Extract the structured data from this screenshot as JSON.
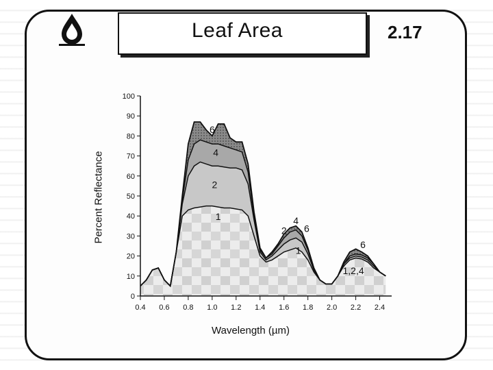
{
  "header": {
    "title": "Leaf Area",
    "figure_number": "2.17"
  },
  "icons": {
    "logo": "water-drop-icon"
  },
  "colors": {
    "outline": "#111111",
    "band_fill": "#c8c8c8",
    "band_top": "#7a7a7a",
    "band_dark": "#555555",
    "base_fill": "#e4e4e4"
  },
  "chart_data": {
    "type": "area",
    "title": "",
    "xlabel": "Wavelength (µm)",
    "ylabel": "Percent Reflectance",
    "xlim": [
      0.4,
      2.5
    ],
    "ylim": [
      0,
      100
    ],
    "x_ticks": [
      "0.4",
      "0.6",
      "0.8",
      "1.0",
      "1.2",
      "1.4",
      "1.6",
      "1.8",
      "2.0",
      "2.2",
      "2.4"
    ],
    "x_tick_values": [
      0.4,
      0.6,
      0.8,
      1.0,
      1.2,
      1.4,
      1.6,
      1.8,
      2.0,
      2.2,
      2.4
    ],
    "y_ticks": [
      "0",
      "10",
      "20",
      "30",
      "40",
      "50",
      "60",
      "70",
      "80",
      "90",
      "100"
    ],
    "y_tick_values": [
      0,
      10,
      20,
      30,
      40,
      50,
      60,
      70,
      80,
      90,
      100
    ],
    "grid": false,
    "x": [
      0.4,
      0.45,
      0.5,
      0.55,
      0.6,
      0.65,
      0.7,
      0.75,
      0.8,
      0.85,
      0.9,
      0.95,
      1.0,
      1.05,
      1.1,
      1.15,
      1.2,
      1.25,
      1.3,
      1.35,
      1.4,
      1.45,
      1.5,
      1.55,
      1.6,
      1.65,
      1.7,
      1.75,
      1.8,
      1.85,
      1.9,
      1.95,
      2.0,
      2.05,
      2.1,
      2.15,
      2.2,
      2.25,
      2.3,
      2.35,
      2.4,
      2.45
    ],
    "series": [
      {
        "name": "1",
        "values": [
          5,
          8,
          13,
          14,
          8,
          5,
          22,
          40,
          43,
          44,
          44.5,
          45,
          45,
          44.5,
          44,
          44,
          43.5,
          43,
          40,
          30,
          20,
          17,
          18,
          20,
          22,
          23,
          24,
          22,
          18,
          12,
          8,
          6,
          6,
          10,
          15,
          18,
          19,
          18.5,
          17,
          14,
          12,
          10
        ]
      },
      {
        "name": "2",
        "values": [
          5,
          8,
          13,
          14,
          8,
          5,
          22,
          46,
          60,
          65,
          67,
          66,
          65,
          65,
          64.5,
          64,
          64,
          63,
          56,
          38,
          22,
          18,
          20,
          23,
          26,
          28,
          29,
          27,
          21,
          13,
          8,
          6,
          6,
          10,
          16,
          19,
          20,
          19.5,
          18,
          15,
          12,
          10
        ]
      },
      {
        "name": "4",
        "values": [
          5,
          8,
          13,
          14,
          8,
          5,
          22,
          48,
          68,
          76,
          78,
          77,
          76,
          76,
          75,
          74,
          73,
          72,
          62,
          40,
          23,
          19,
          21,
          25,
          29,
          32,
          33,
          30,
          23,
          14,
          8,
          6,
          6,
          10,
          16,
          20,
          21,
          20.5,
          19,
          16,
          12,
          10
        ]
      },
      {
        "name": "6",
        "values": [
          5,
          8,
          13,
          14,
          8,
          5,
          22,
          50,
          76,
          87,
          87,
          83,
          80,
          86,
          86,
          79,
          77,
          77,
          66,
          42,
          24,
          19,
          22,
          26,
          31,
          34,
          35,
          32,
          24,
          14,
          8,
          6,
          6,
          10,
          17,
          22,
          23.5,
          22,
          20,
          16,
          12,
          10
        ]
      }
    ],
    "curve_labels": [
      {
        "text": "6",
        "x": 1.0,
        "y": 81.5
      },
      {
        "text": "4",
        "x": 1.03,
        "y": 70
      },
      {
        "text": "2",
        "x": 1.02,
        "y": 54
      },
      {
        "text": "1",
        "x": 1.05,
        "y": 38
      },
      {
        "text": "2",
        "x": 1.6,
        "y": 31
      },
      {
        "text": "4",
        "x": 1.7,
        "y": 36
      },
      {
        "text": "6",
        "x": 1.79,
        "y": 32
      },
      {
        "text": "1",
        "x": 1.72,
        "y": 21
      },
      {
        "text": "6",
        "x": 2.26,
        "y": 24
      },
      {
        "text": "1,2,4",
        "x": 2.18,
        "y": 11
      }
    ]
  }
}
